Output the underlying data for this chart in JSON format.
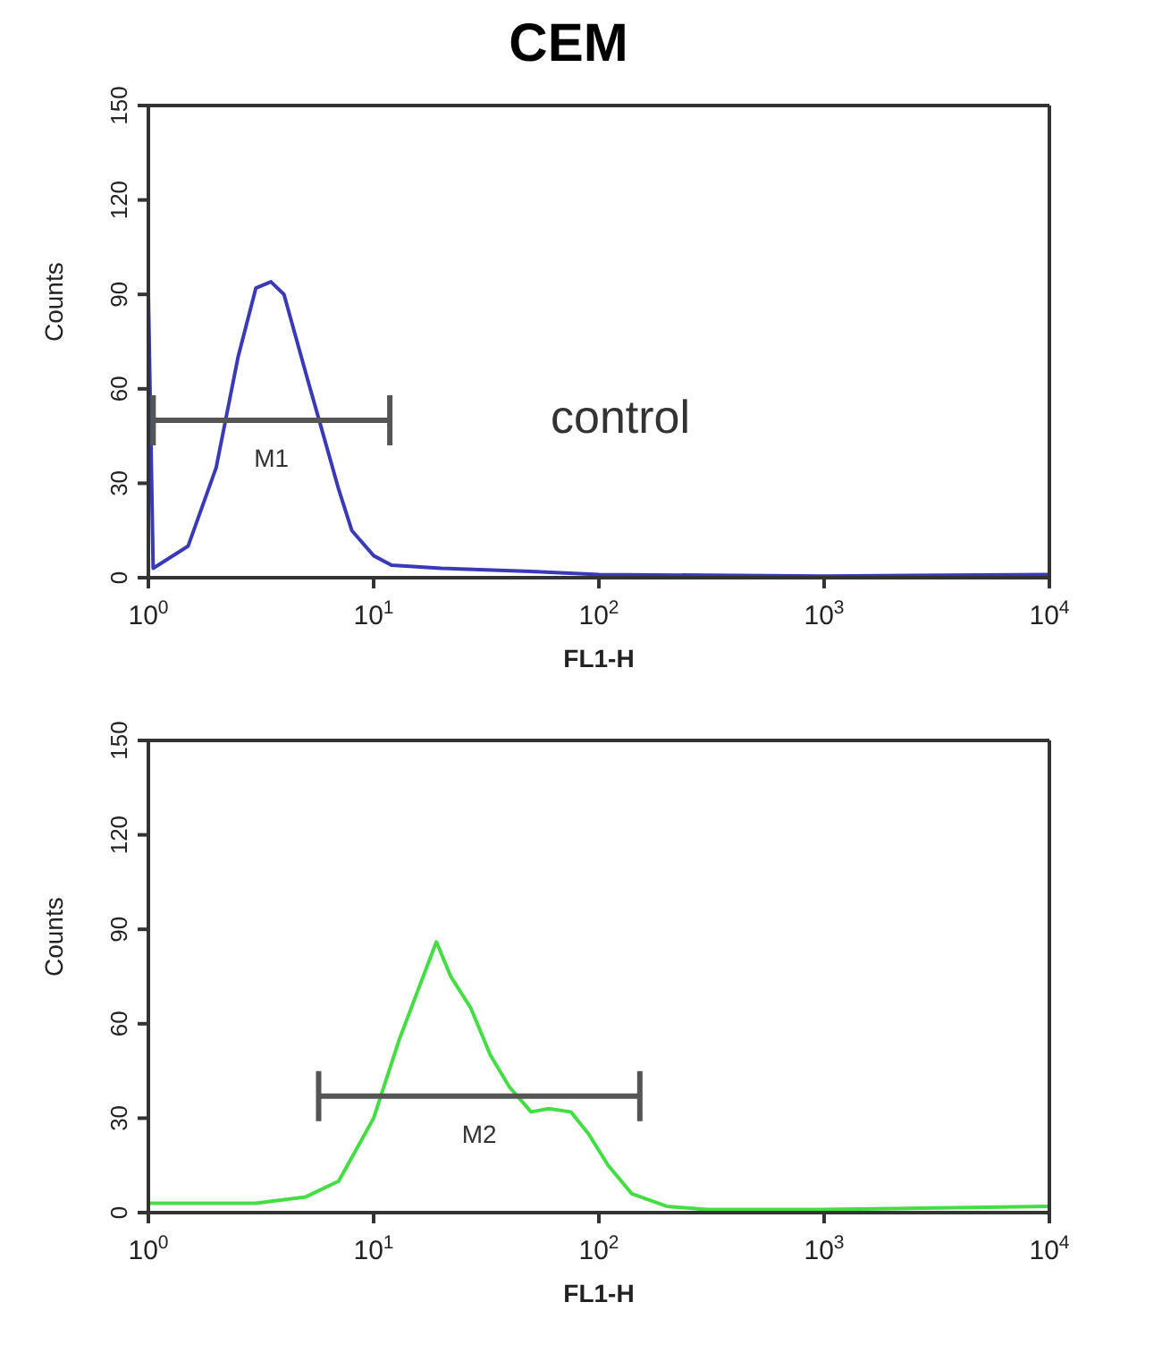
{
  "chart_data": [
    {
      "type": "line",
      "title": "CEM",
      "xlabel": "FL1-H",
      "ylabel": "Counts",
      "log": "x",
      "xlim": [
        1,
        10000
      ],
      "ylim": [
        0,
        150
      ],
      "marker": "none",
      "legend": false,
      "grid": false,
      "xticks": [
        {
          "value": 1,
          "label": "10$^{0}$"
        },
        {
          "value": 10,
          "label": "10$^{1}$"
        },
        {
          "value": 100,
          "label": "10$^{2}$"
        },
        {
          "value": 1000,
          "label": "10$^{3}$"
        },
        {
          "value": 10000,
          "label": "10$^{4}$"
        }
      ],
      "yticks": [
        0,
        30,
        60,
        90,
        120,
        150
      ],
      "series": [
        {
          "color": "#3a3ab8",
          "x": [
            1,
            1.05,
            1.5,
            2,
            2.5,
            3,
            3.5,
            4,
            5,
            6,
            7,
            8,
            10,
            12,
            20,
            50,
            100,
            1000,
            10000
          ],
          "values": [
            90,
            3,
            10,
            35,
            70,
            92,
            94,
            90,
            65,
            45,
            28,
            15,
            7,
            4,
            3,
            2,
            1,
            0.5,
            1
          ]
        },
        {
          "color": "#555555",
          "x": [
            1.05,
            11.8
          ],
          "values": [
            50,
            50
          ]
        }
      ],
      "annotations": [
        "M1",
        "control"
      ]
    },
    {
      "type": "line",
      "xlabel": "FL1-H",
      "ylabel": "Counts",
      "log": "x",
      "xlim": [
        1,
        10000
      ],
      "ylim": [
        0,
        150
      ],
      "marker": "none",
      "legend": false,
      "grid": false,
      "xticks": [
        {
          "value": 1,
          "label": "10$^{0}$"
        },
        {
          "value": 10,
          "label": "10$^{1}$"
        },
        {
          "value": 100,
          "label": "10$^{2}$"
        },
        {
          "value": 1000,
          "label": "10$^{3}$"
        },
        {
          "value": 10000,
          "label": "10$^{4}$"
        }
      ],
      "yticks": [
        0,
        30,
        60,
        90,
        120,
        150
      ],
      "series": [
        {
          "color": "#44dd44",
          "x": [
            1,
            3,
            5,
            7,
            10,
            13,
            16,
            19,
            22,
            27,
            33,
            40,
            50,
            60,
            75,
            90,
            110,
            140,
            200,
            300,
            1000,
            10000
          ],
          "values": [
            3,
            3,
            5,
            10,
            30,
            55,
            72,
            86,
            75,
            65,
            50,
            40,
            32,
            33,
            32,
            25,
            15,
            6,
            2,
            1,
            1,
            2
          ]
        },
        {
          "color": "#555555",
          "x": [
            5.7,
            152
          ],
          "values": [
            37,
            37
          ]
        }
      ],
      "annotations": [
        "M2"
      ]
    }
  ]
}
